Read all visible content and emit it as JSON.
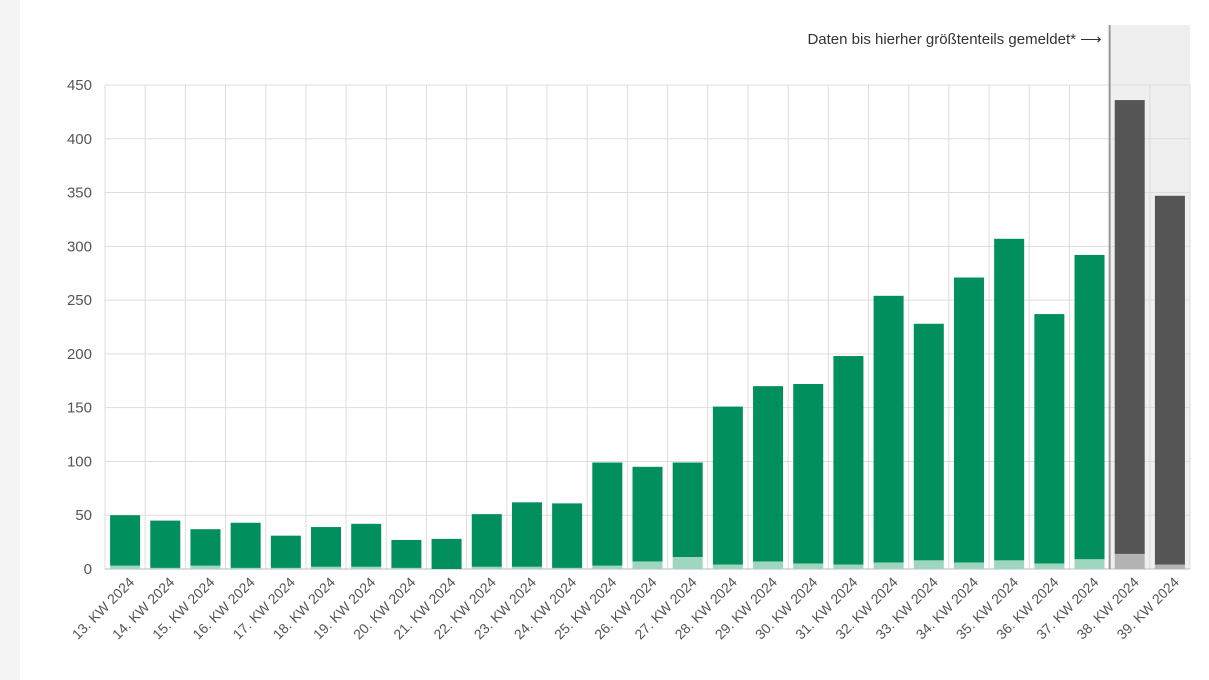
{
  "chart_data": {
    "type": "bar",
    "stacked": true,
    "categories": [
      "13. KW 2024",
      "14. KW 2024",
      "15. KW 2024",
      "16. KW 2024",
      "17. KW 2024",
      "18. KW 2024",
      "19. KW 2024",
      "20. KW 2024",
      "21. KW 2024",
      "22. KW 2024",
      "23. KW 2024",
      "24. KW 2024",
      "25. KW 2024",
      "26. KW 2024",
      "27. KW 2024",
      "28. KW 2024",
      "29. KW 2024",
      "30. KW 2024",
      "31. KW 2024",
      "32. KW 2024",
      "33. KW 2024",
      "34. KW 2024",
      "35. KW 2024",
      "36. KW 2024",
      "37. KW 2024",
      "38. KW 2024",
      "39. KW 2024"
    ],
    "totals": [
      50,
      45,
      37,
      43,
      31,
      39,
      42,
      27,
      28,
      51,
      62,
      61,
      99,
      95,
      99,
      151,
      170,
      172,
      198,
      254,
      228,
      271,
      307,
      237,
      292,
      436,
      347
    ],
    "lower_values": [
      3,
      1,
      3,
      1,
      1,
      2,
      2,
      1,
      0,
      2,
      2,
      1,
      3,
      7,
      11,
      4,
      7,
      5,
      4,
      6,
      8,
      6,
      8,
      5,
      9,
      14,
      4
    ],
    "incomplete_from_index": 25,
    "ylim": [
      0,
      450
    ],
    "yticks": [
      0,
      50,
      100,
      150,
      200,
      250,
      300,
      350,
      400,
      450
    ],
    "grid": true,
    "annotation": "Daten bis hierher größtenteils gemeldet* ⟶",
    "colors": {
      "upper": "#008f5d",
      "lower": "#9ed6c0",
      "upper_incomplete": "#555555",
      "lower_incomplete": "#b3b3b3",
      "shade": "#efefef",
      "grid": "#dddddd",
      "divider": "#999999"
    }
  }
}
